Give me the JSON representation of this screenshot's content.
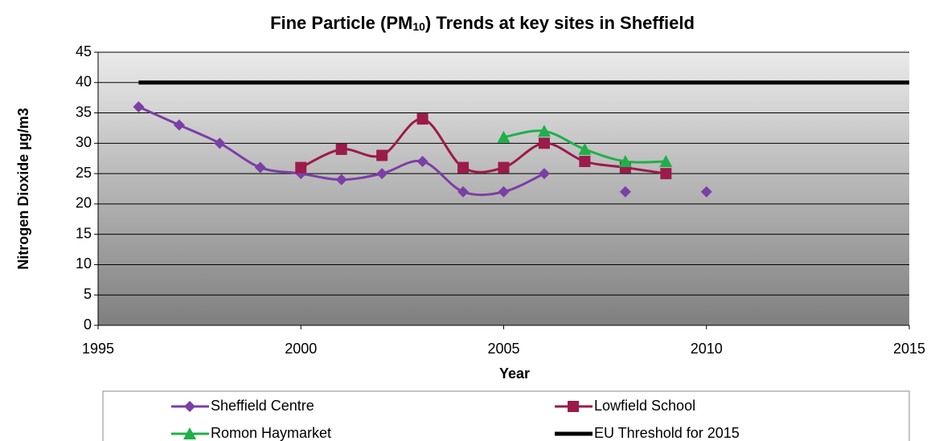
{
  "chart_data": {
    "type": "line",
    "title": [
      "Fine Particle (PM",
      "10",
      ") Trends at key sites in Sheffield"
    ],
    "x_label": "Year",
    "y_label": "Nitrogen Dioxide µg/m3",
    "xlim": [
      1995,
      2015
    ],
    "xticks": [
      1995,
      2000,
      2005,
      2010,
      2015
    ],
    "ylim": [
      0,
      45
    ],
    "yticks": [
      0,
      5,
      10,
      15,
      20,
      25,
      30,
      35,
      40,
      45
    ],
    "grid": true,
    "legend": "bottom",
    "series": [
      {
        "name": "Sheffield Centre",
        "color": "#7b3fa6",
        "marker": "diamond",
        "smooth": true,
        "x": [
          1996,
          1997,
          1998,
          1999,
          2000,
          2001,
          2002,
          2003,
          2004,
          2005,
          2006,
          2007,
          2008,
          2009,
          2010
        ],
        "values": [
          36,
          33,
          30,
          26,
          25,
          24,
          25,
          27,
          22,
          22,
          25,
          null,
          22,
          null,
          22
        ]
      },
      {
        "name": "Lowfield School",
        "color": "#9b1b4a",
        "marker": "square",
        "smooth": true,
        "x": [
          2000,
          2001,
          2002,
          2003,
          2004,
          2005,
          2006,
          2007,
          2008,
          2009
        ],
        "values": [
          26,
          29,
          28,
          34,
          26,
          26,
          30,
          27,
          26,
          25
        ]
      },
      {
        "name": "Romon Haymarket",
        "color": "#1fb04a",
        "marker": "triangle",
        "smooth": true,
        "x": [
          2005,
          2006,
          2007,
          2008,
          2009
        ],
        "values": [
          31,
          32,
          29,
          27,
          27
        ]
      },
      {
        "name": "EU Threshold for 2015",
        "color": "#000000",
        "marker": "none",
        "smooth": false,
        "x": [
          1996,
          2015
        ],
        "values": [
          40,
          40
        ]
      }
    ]
  }
}
